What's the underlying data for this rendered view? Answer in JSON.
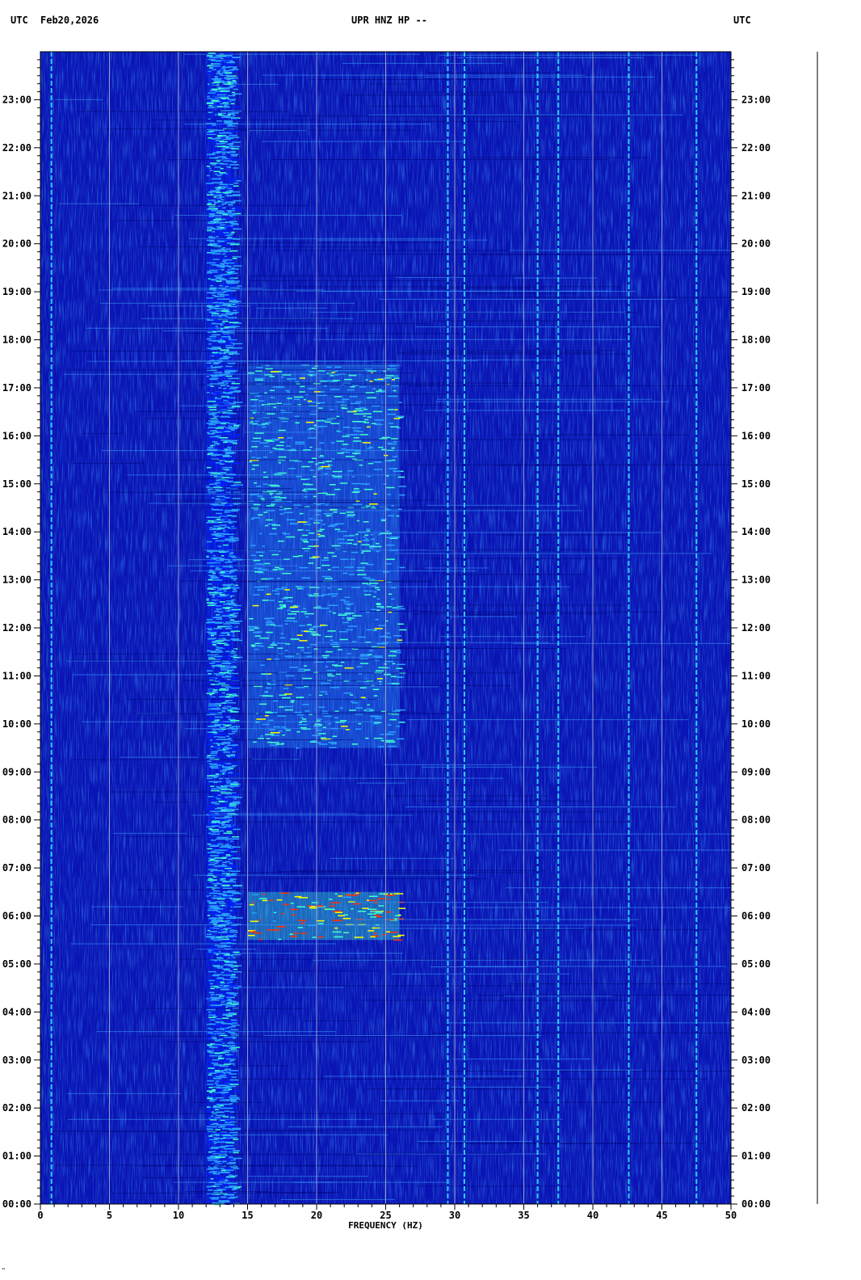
{
  "header": {
    "tz_left": "UTC",
    "date": "Feb20,2026",
    "station": "UPR HNZ HP --",
    "tz_right": "UTC"
  },
  "chart_data": {
    "type": "heatmap",
    "title": "UPR HNZ HP --",
    "xlabel": "FREQUENCY (HZ)",
    "ylabel": "",
    "xlim": [
      0,
      50
    ],
    "ylim_hours_utc": [
      0,
      24
    ],
    "x_ticks": [
      0,
      5,
      10,
      15,
      20,
      25,
      30,
      35,
      40,
      45,
      50
    ],
    "y_ticks": [
      "00:00",
      "01:00",
      "02:00",
      "03:00",
      "04:00",
      "05:00",
      "06:00",
      "07:00",
      "08:00",
      "09:00",
      "10:00",
      "11:00",
      "12:00",
      "13:00",
      "14:00",
      "15:00",
      "16:00",
      "17:00",
      "18:00",
      "19:00",
      "20:00",
      "21:00",
      "22:00",
      "23:00"
    ],
    "colormap": [
      "#00008c",
      "#0020ff",
      "#2aa0ff",
      "#40ffd0",
      "#ffff00",
      "#ff3000"
    ],
    "background_color": "#0a14b4",
    "grid": "vertical every 5 Hz",
    "persistent_lines_hz": [
      0.8,
      29.5,
      30.7,
      36.0,
      37.5,
      42.6,
      47.5
    ],
    "energy_bands": [
      {
        "hz": [
          12,
          14
        ],
        "from_h": 0,
        "to_h": 24,
        "level": 0.45
      },
      {
        "hz": [
          15,
          26
        ],
        "from_h": 5.5,
        "to_h": 6.5,
        "level": 0.95
      },
      {
        "hz": [
          15,
          26
        ],
        "from_h": 9.5,
        "to_h": 17.5,
        "level": 0.6
      }
    ],
    "footnote": "\""
  }
}
